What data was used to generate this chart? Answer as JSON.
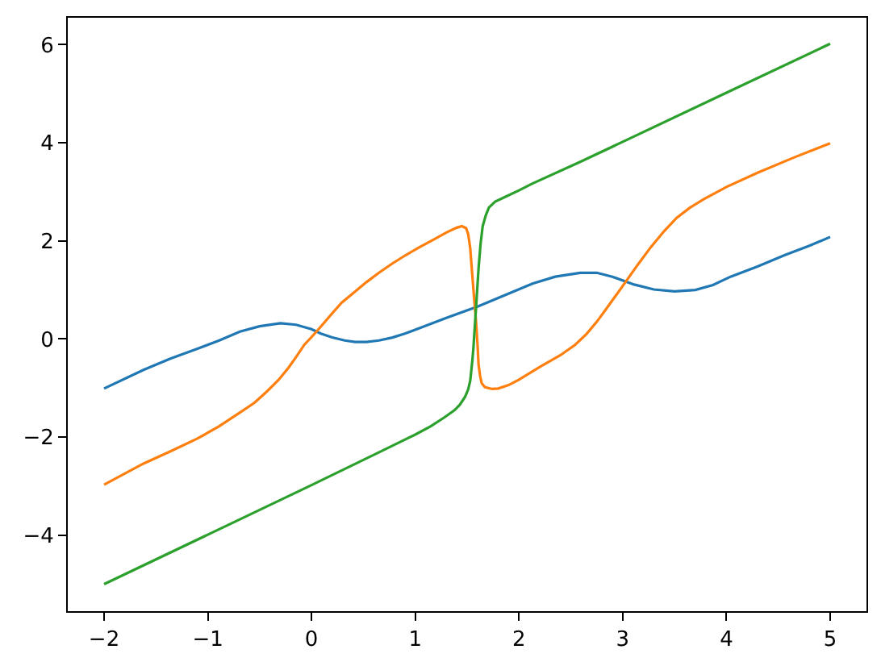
{
  "chart_data": {
    "type": "line",
    "xlim": [
      -2.35,
      5.35
    ],
    "ylim": [
      -5.55,
      6.55
    ],
    "xticks": [
      {
        "value": -2,
        "label": "−2"
      },
      {
        "value": -1,
        "label": "−1"
      },
      0,
      1,
      2,
      3,
      4,
      5
    ],
    "yticks": [
      {
        "value": -4,
        "label": "−4"
      },
      {
        "value": -2,
        "label": "−2"
      },
      0,
      2,
      4,
      6
    ],
    "grid": false,
    "marker": "none",
    "line_style": "solid",
    "series": [
      {
        "color": "#1f77b4",
        "x": [
          -2.0,
          -1.62,
          -1.36,
          -1.1,
          -0.89,
          -0.69,
          -0.5,
          -0.3,
          -0.15,
          0.0,
          0.09,
          0.2,
          0.32,
          0.42,
          0.53,
          0.65,
          0.78,
          0.9,
          1.04,
          1.3,
          1.61,
          1.87,
          2.13,
          2.35,
          2.59,
          2.75,
          2.9,
          3.11,
          3.3,
          3.5,
          3.7,
          3.87,
          4.04,
          4.3,
          4.56,
          4.8,
          5.0
        ],
        "values": [
          -1.01,
          -0.63,
          -0.4,
          -0.2,
          -0.03,
          0.15,
          0.26,
          0.32,
          0.29,
          0.2,
          0.11,
          0.03,
          -0.03,
          -0.06,
          -0.06,
          -0.03,
          0.03,
          0.11,
          0.22,
          0.43,
          0.67,
          0.9,
          1.13,
          1.27,
          1.35,
          1.35,
          1.27,
          1.11,
          1.01,
          0.97,
          1.0,
          1.1,
          1.27,
          1.48,
          1.71,
          1.9,
          2.08
        ]
      },
      {
        "color": "#ff7f0e",
        "x": [
          -2.0,
          -1.62,
          -1.36,
          -1.1,
          -0.89,
          -0.69,
          -0.55,
          -0.43,
          -0.32,
          -0.22,
          -0.14,
          -0.07,
          0.0,
          0.06,
          0.19,
          0.29,
          0.4,
          0.53,
          0.65,
          0.78,
          0.9,
          1.04,
          1.17,
          1.3,
          1.4,
          1.45,
          1.49,
          1.51,
          1.53,
          1.545,
          1.565,
          1.586,
          1.6,
          1.61,
          1.625,
          1.64,
          1.67,
          1.74,
          1.8,
          1.9,
          2.0,
          2.2,
          2.4,
          2.54,
          2.65,
          2.75,
          2.85,
          3.01,
          3.14,
          3.27,
          3.4,
          3.52,
          3.65,
          3.78,
          4.0,
          4.3,
          4.65,
          5.0
        ],
        "values": [
          -2.97,
          -2.54,
          -2.29,
          -2.03,
          -1.78,
          -1.5,
          -1.3,
          -1.07,
          -0.84,
          -0.58,
          -0.34,
          -0.12,
          0.04,
          0.18,
          0.5,
          0.74,
          0.93,
          1.16,
          1.35,
          1.54,
          1.7,
          1.87,
          2.02,
          2.17,
          2.27,
          2.3,
          2.26,
          2.14,
          1.85,
          1.43,
          0.9,
          0.35,
          -0.1,
          -0.52,
          -0.75,
          -0.9,
          -0.98,
          -1.02,
          -1.01,
          -0.94,
          -0.83,
          -0.57,
          -0.33,
          -0.12,
          0.1,
          0.35,
          0.64,
          1.11,
          1.5,
          1.87,
          2.2,
          2.47,
          2.68,
          2.85,
          3.1,
          3.39,
          3.7,
          3.99
        ]
      },
      {
        "color": "#2ca02c",
        "x": [
          -2.0,
          -1.0,
          0.0,
          0.66,
          1.0,
          1.15,
          1.28,
          1.38,
          1.43,
          1.48,
          1.51,
          1.53,
          1.55,
          1.56,
          1.585,
          1.61,
          1.63,
          1.65,
          1.68,
          1.71,
          1.77,
          1.87,
          2.0,
          2.13,
          2.59,
          3.0,
          4.0,
          5.0
        ],
        "values": [
          -5.0,
          -3.99,
          -2.98,
          -2.3,
          -1.95,
          -1.78,
          -1.6,
          -1.45,
          -1.34,
          -1.18,
          -1.03,
          -0.85,
          -0.45,
          -0.2,
          0.6,
          1.43,
          1.95,
          2.3,
          2.52,
          2.68,
          2.8,
          2.9,
          3.03,
          3.17,
          3.61,
          4.02,
          5.02,
          6.02
        ]
      }
    ]
  }
}
